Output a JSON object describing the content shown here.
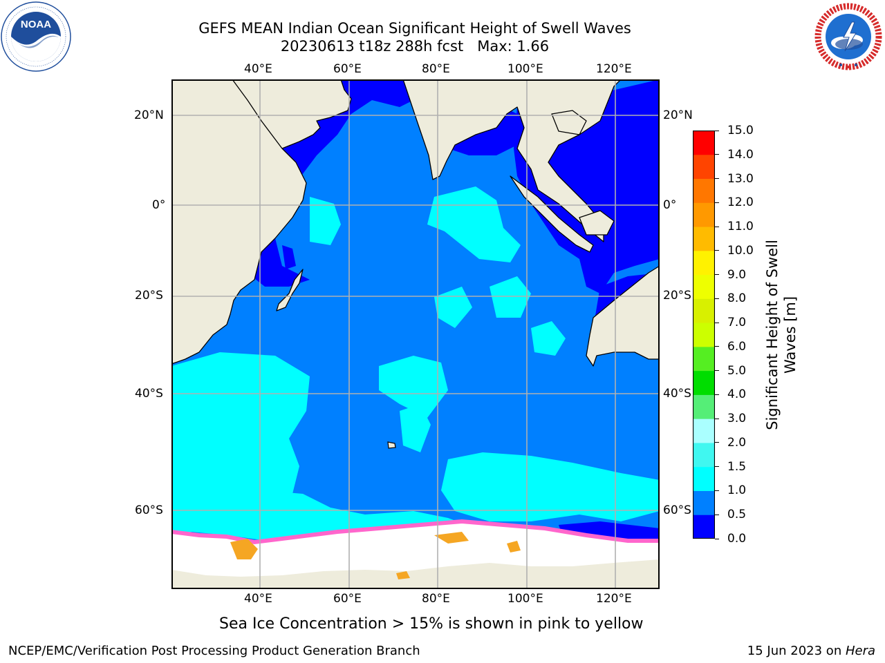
{
  "title": {
    "line1": "GEFS MEAN Indian Ocean Significant Height of Swell Waves",
    "line2": "20230613 t18z 288h fcst   Max: 1.66"
  },
  "logos": {
    "noaa": {
      "text": "NOAA",
      "ring_text": "NATIONAL OCEANIC AND ATMOSPHERIC ADMINISTRATION · U.S. DEPARTMENT OF COMMERCE",
      "color": "#1f4e9c"
    },
    "nws": {
      "ring_text": "NATIONAL WEATHER SERVICE",
      "color": "#d62b2b"
    }
  },
  "map": {
    "lon_ticks": [
      "40°E",
      "60°E",
      "80°E",
      "100°E",
      "120°E"
    ],
    "lat_ticks": [
      "20°N",
      "0°",
      "20°S",
      "40°S",
      "60°S"
    ],
    "grid": true,
    "colors": {
      "land": "#eeecdc",
      "ocean_low": "#0000ff",
      "ocean_mid": "#0080ff",
      "ocean_high": "#00ffff",
      "ice": "#ffffff",
      "ice_edge": "#ff66cc",
      "ice_core": "#f5a623"
    }
  },
  "colorbar": {
    "label_line1": "Significant Height of Swell",
    "label_line2": "Waves [m]",
    "tick_labels": [
      "15.0",
      "14.0",
      "13.0",
      "12.0",
      "11.0",
      "10.0",
      "9.0",
      "8.0",
      "7.0",
      "6.0",
      "5.0",
      "4.0",
      "3.0",
      "2.0",
      "1.5",
      "1.0",
      "0.5",
      "0.0"
    ],
    "bins": [
      {
        "min": 0.0,
        "max": 0.5,
        "color": "#0000ff"
      },
      {
        "min": 0.5,
        "max": 1.0,
        "color": "#0080ff"
      },
      {
        "min": 1.0,
        "max": 1.5,
        "color": "#00ffff"
      },
      {
        "min": 1.5,
        "max": 2.0,
        "color": "#40f7f0"
      },
      {
        "min": 2.0,
        "max": 3.0,
        "color": "#aaffff"
      },
      {
        "min": 3.0,
        "max": 4.0,
        "color": "#55ee77"
      },
      {
        "min": 4.0,
        "max": 5.0,
        "color": "#00dd00"
      },
      {
        "min": 5.0,
        "max": 6.0,
        "color": "#55ee22"
      },
      {
        "min": 6.0,
        "max": 7.0,
        "color": "#ccff00"
      },
      {
        "min": 7.0,
        "max": 8.0,
        "color": "#d8f000"
      },
      {
        "min": 8.0,
        "max": 9.0,
        "color": "#eeff00"
      },
      {
        "min": 9.0,
        "max": 10.0,
        "color": "#fff200"
      },
      {
        "min": 10.0,
        "max": 11.0,
        "color": "#ffbb00"
      },
      {
        "min": 11.0,
        "max": 12.0,
        "color": "#ff9900"
      },
      {
        "min": 12.0,
        "max": 13.0,
        "color": "#ff7700"
      },
      {
        "min": 13.0,
        "max": 14.0,
        "color": "#ff4400"
      },
      {
        "min": 14.0,
        "max": 15.0,
        "color": "#ff0000"
      }
    ]
  },
  "caption": "Sea Ice Concentration > 15% is shown in pink to yellow",
  "footer": {
    "left": "NCEP/EMC/Verification Post Processing Product Generation Branch",
    "right_date": "15 Jun 2023 on ",
    "right_machine": "Hera"
  }
}
